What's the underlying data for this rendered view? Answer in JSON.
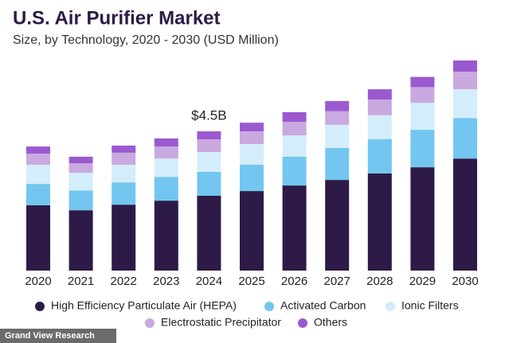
{
  "chart_data": {
    "type": "stacked_bar",
    "title": "U.S. Air Purifier Market",
    "subtitle": "Size, by Technology, 2020 - 2030 (USD Million)",
    "categories": [
      "2020",
      "2021",
      "2022",
      "2023",
      "2024",
      "2025",
      "2026",
      "2027",
      "2028",
      "2029",
      "2030"
    ],
    "series": [
      {
        "name": "High Efficiency Particulate Air (HEPA)",
        "color": "#2e1a47",
        "values": [
          2110,
          1950,
          2130,
          2260,
          2420,
          2570,
          2750,
          2930,
          3140,
          3340,
          3620
        ]
      },
      {
        "name": "Activated Carbon",
        "color": "#72c6ef",
        "values": [
          690,
          640,
          720,
          770,
          770,
          850,
          930,
          1030,
          1110,
          1210,
          1310
        ]
      },
      {
        "name": "Ionic Filters",
        "color": "#d3eefa",
        "values": [
          620,
          570,
          570,
          590,
          640,
          670,
          690,
          750,
          770,
          870,
          930
        ]
      },
      {
        "name": "Electrostatic Precipitator",
        "color": "#c9a9e0",
        "values": [
          360,
          310,
          390,
          390,
          410,
          410,
          440,
          440,
          510,
          510,
          570
        ]
      },
      {
        "name": "Others",
        "color": "#9b59d0",
        "values": [
          230,
          210,
          230,
          260,
          260,
          280,
          310,
          330,
          330,
          330,
          360
        ]
      }
    ],
    "annotation": {
      "text": "$4.5B",
      "x": "2024"
    },
    "source": "Grand View Research"
  }
}
